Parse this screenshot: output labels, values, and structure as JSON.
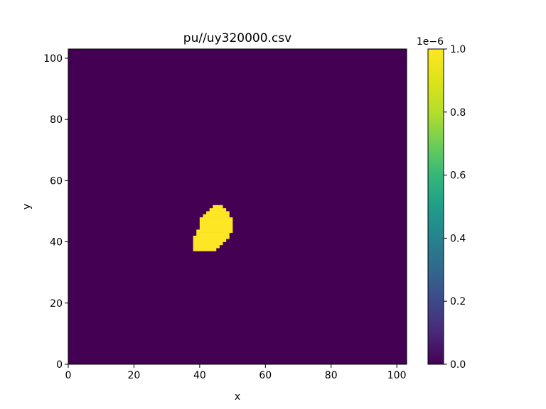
{
  "chart_data": {
    "type": "heatmap",
    "title": "pu//uy320000.csv",
    "xlabel": "x",
    "ylabel": "y",
    "xlim": [
      0,
      103
    ],
    "ylim": [
      0,
      103
    ],
    "xticks": [
      0,
      20,
      40,
      60,
      80,
      100
    ],
    "yticks": [
      0,
      20,
      40,
      60,
      80,
      100
    ],
    "background_value": 0.0,
    "blob_value": 1e-06,
    "blob_rows": [
      {
        "y": 37,
        "x0": 38,
        "x1": 44
      },
      {
        "y": 38,
        "x0": 38,
        "x1": 45
      },
      {
        "y": 39,
        "x0": 38,
        "x1": 46
      },
      {
        "y": 40,
        "x0": 38,
        "x1": 47
      },
      {
        "y": 41,
        "x0": 38,
        "x1": 48
      },
      {
        "y": 42,
        "x0": 39,
        "x1": 48
      },
      {
        "y": 43,
        "x0": 39,
        "x1": 49
      },
      {
        "y": 44,
        "x0": 40,
        "x1": 49
      },
      {
        "y": 45,
        "x0": 40,
        "x1": 49
      },
      {
        "y": 46,
        "x0": 40,
        "x1": 49
      },
      {
        "y": 47,
        "x0": 40,
        "x1": 49
      },
      {
        "y": 48,
        "x0": 41,
        "x1": 48
      },
      {
        "y": 49,
        "x0": 42,
        "x1": 48
      },
      {
        "y": 50,
        "x0": 43,
        "x1": 47
      },
      {
        "y": 51,
        "x0": 44,
        "x1": 46
      }
    ],
    "colorbar": {
      "colormap": "viridis",
      "range": [
        0.0,
        1.0
      ],
      "ticks": [
        "0.0",
        "0.2",
        "0.4",
        "0.6",
        "0.8",
        "1.0"
      ],
      "offset_label": "1e−6"
    },
    "colors": {
      "low": "#440154",
      "high": "#fde725"
    }
  }
}
